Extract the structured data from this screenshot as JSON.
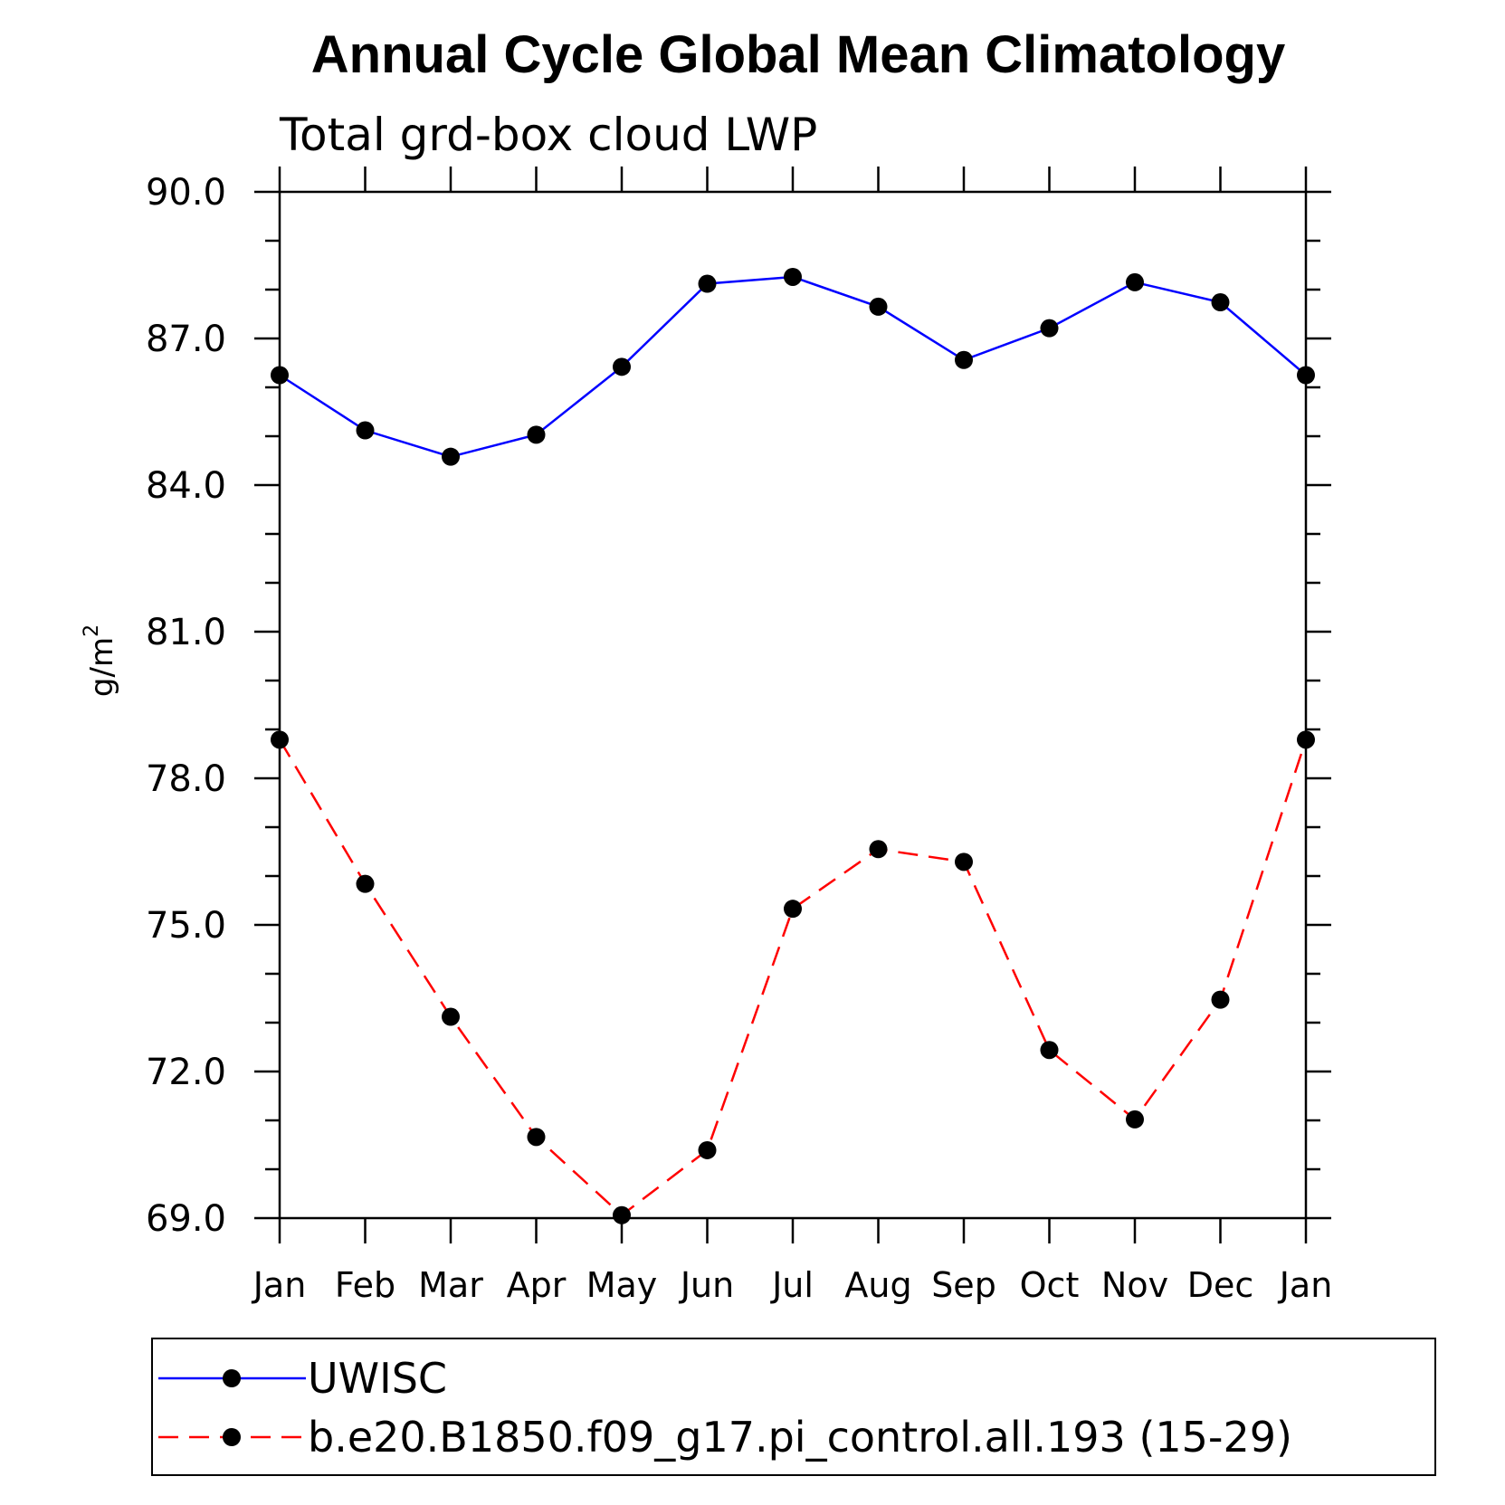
{
  "chart_data": {
    "type": "line",
    "title": "Annual Cycle Global Mean Climatology",
    "subtitle": "Total grd-box cloud LWP",
    "ylabel": "g/m",
    "ylabel_sup": "2",
    "ylim": [
      69.0,
      90.0
    ],
    "yticks": [
      "90.0",
      "87.0",
      "84.0",
      "81.0",
      "78.0",
      "75.0",
      "72.0",
      "69.0"
    ],
    "categories": [
      "Jan",
      "Feb",
      "Mar",
      "Apr",
      "May",
      "Jun",
      "Jul",
      "Aug",
      "Sep",
      "Oct",
      "Nov",
      "Dec",
      "Jan"
    ],
    "legend_placement": "bottom",
    "series": [
      {
        "name": "UWISC",
        "color": "#0000ff",
        "style": "solid",
        "values": [
          86.25,
          85.12,
          84.58,
          85.03,
          86.42,
          88.12,
          88.26,
          87.65,
          86.56,
          87.21,
          88.15,
          87.74,
          86.25
        ]
      },
      {
        "name": "b.e20.B1850.f09_g17.pi_control.all.193 (15-29)",
        "color": "#ff0000",
        "style": "dashed",
        "values": [
          78.79,
          75.84,
          73.12,
          70.66,
          69.06,
          70.39,
          75.33,
          76.55,
          76.29,
          72.44,
          71.02,
          73.47,
          78.79
        ]
      }
    ]
  }
}
